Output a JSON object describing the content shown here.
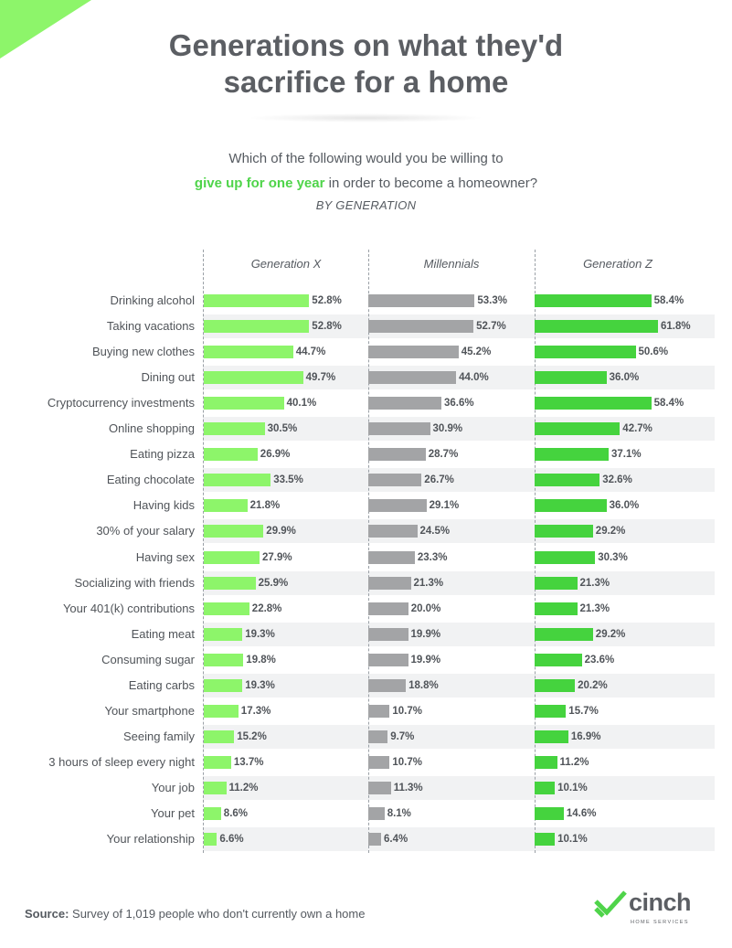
{
  "title_line1": "Generations on what they'd",
  "title_line2": "sacrifice for a home",
  "question": {
    "line1": "Which of the following would you be willing to",
    "highlight": "give up for one year",
    "line2_rest": " in order to become a homeowner?"
  },
  "subtitle": "BY GENERATION",
  "colors": {
    "gen_x": "#8df56a",
    "millennials": "#a3a4a6",
    "gen_z": "#45d33e",
    "accent": "#4fd44a"
  },
  "chart_data": {
    "type": "bar",
    "categories": [
      "Drinking alcohol",
      "Taking vacations",
      "Buying new clothes",
      "Dining out",
      "Cryptocurrency investments",
      "Online shopping",
      "Eating pizza",
      "Eating chocolate",
      "Having kids",
      "30% of your salary",
      "Having sex",
      "Socializing with friends",
      "Your 401(k) contributions",
      "Eating meat",
      "Consuming sugar",
      "Eating carbs",
      "Your smartphone",
      "Seeing family",
      "3 hours of sleep every night",
      "Your job",
      "Your pet",
      "Your relationship"
    ],
    "series": [
      {
        "name": "Generation X",
        "values": [
          52.8,
          52.8,
          44.7,
          49.7,
          40.1,
          30.5,
          26.9,
          33.5,
          21.8,
          29.9,
          27.9,
          25.9,
          22.8,
          19.3,
          19.8,
          19.3,
          17.3,
          15.2,
          13.7,
          11.2,
          8.6,
          6.6
        ]
      },
      {
        "name": "Millennials",
        "values": [
          53.3,
          52.7,
          45.2,
          44.0,
          36.6,
          30.9,
          28.7,
          26.7,
          29.1,
          24.5,
          23.3,
          21.3,
          20.0,
          19.9,
          19.9,
          18.8,
          10.7,
          9.7,
          10.7,
          11.3,
          8.1,
          6.4
        ]
      },
      {
        "name": "Generation Z",
        "values": [
          58.4,
          61.8,
          50.6,
          36.0,
          58.4,
          42.7,
          37.1,
          32.6,
          36.0,
          29.2,
          30.3,
          21.3,
          21.3,
          29.2,
          23.6,
          20.2,
          15.7,
          16.9,
          11.2,
          10.1,
          14.6,
          10.1
        ]
      }
    ],
    "value_format": "{v}%",
    "xlim": [
      0,
      65
    ],
    "grid": false,
    "legend": "column headers"
  },
  "source": {
    "label": "Source:",
    "text": " Survey of 1,019 people who don't currently own a home"
  },
  "logo": {
    "word": "cinch",
    "sub": "HOME SERVICES",
    "reg": "®"
  }
}
